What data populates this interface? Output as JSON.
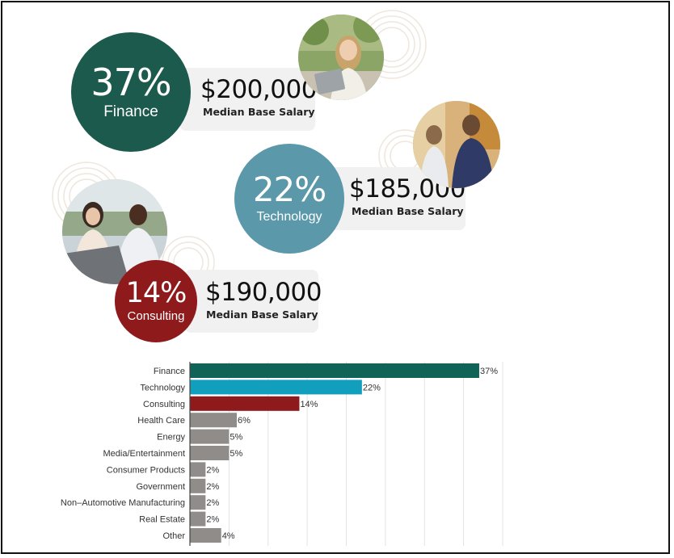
{
  "highlights": [
    {
      "percent": "37%",
      "category": "Finance",
      "salary": "$200,000",
      "salary_label": "Median Base Salary",
      "color": "#1b5a4d"
    },
    {
      "percent": "22%",
      "category": "Technology",
      "salary": "$185,000",
      "salary_label": "Median Base Salary",
      "color": "#5a98aa"
    },
    {
      "percent": "14%",
      "category": "Consulting",
      "salary": "$190,000",
      "salary_label": "Median Base Salary",
      "color": "#8f1a1c"
    }
  ],
  "chart_data": {
    "type": "bar",
    "orientation": "horizontal",
    "categories": [
      "Finance",
      "Technology",
      "Consulting",
      "Health Care",
      "Energy",
      "Media/Entertainment",
      "Consumer Products",
      "Government",
      "Non–Automotive Manufacturing",
      "Real Estate",
      "Other"
    ],
    "values": [
      37,
      22,
      14,
      6,
      5,
      5,
      2,
      2,
      2,
      2,
      4
    ],
    "data_labels": [
      "37%",
      "22%",
      "14%",
      "6%",
      "5%",
      "5%",
      "2%",
      "2%",
      "2%",
      "2%",
      "4%"
    ],
    "colors": [
      "#0f6457",
      "#129fbd",
      "#8f1a1c",
      "#8f8c89",
      "#8f8c89",
      "#8f8c89",
      "#8f8c89",
      "#8f8c89",
      "#8f8c89",
      "#8f8c89",
      "#8f8c89"
    ],
    "xlim": [
      0,
      40
    ],
    "grid": true
  }
}
